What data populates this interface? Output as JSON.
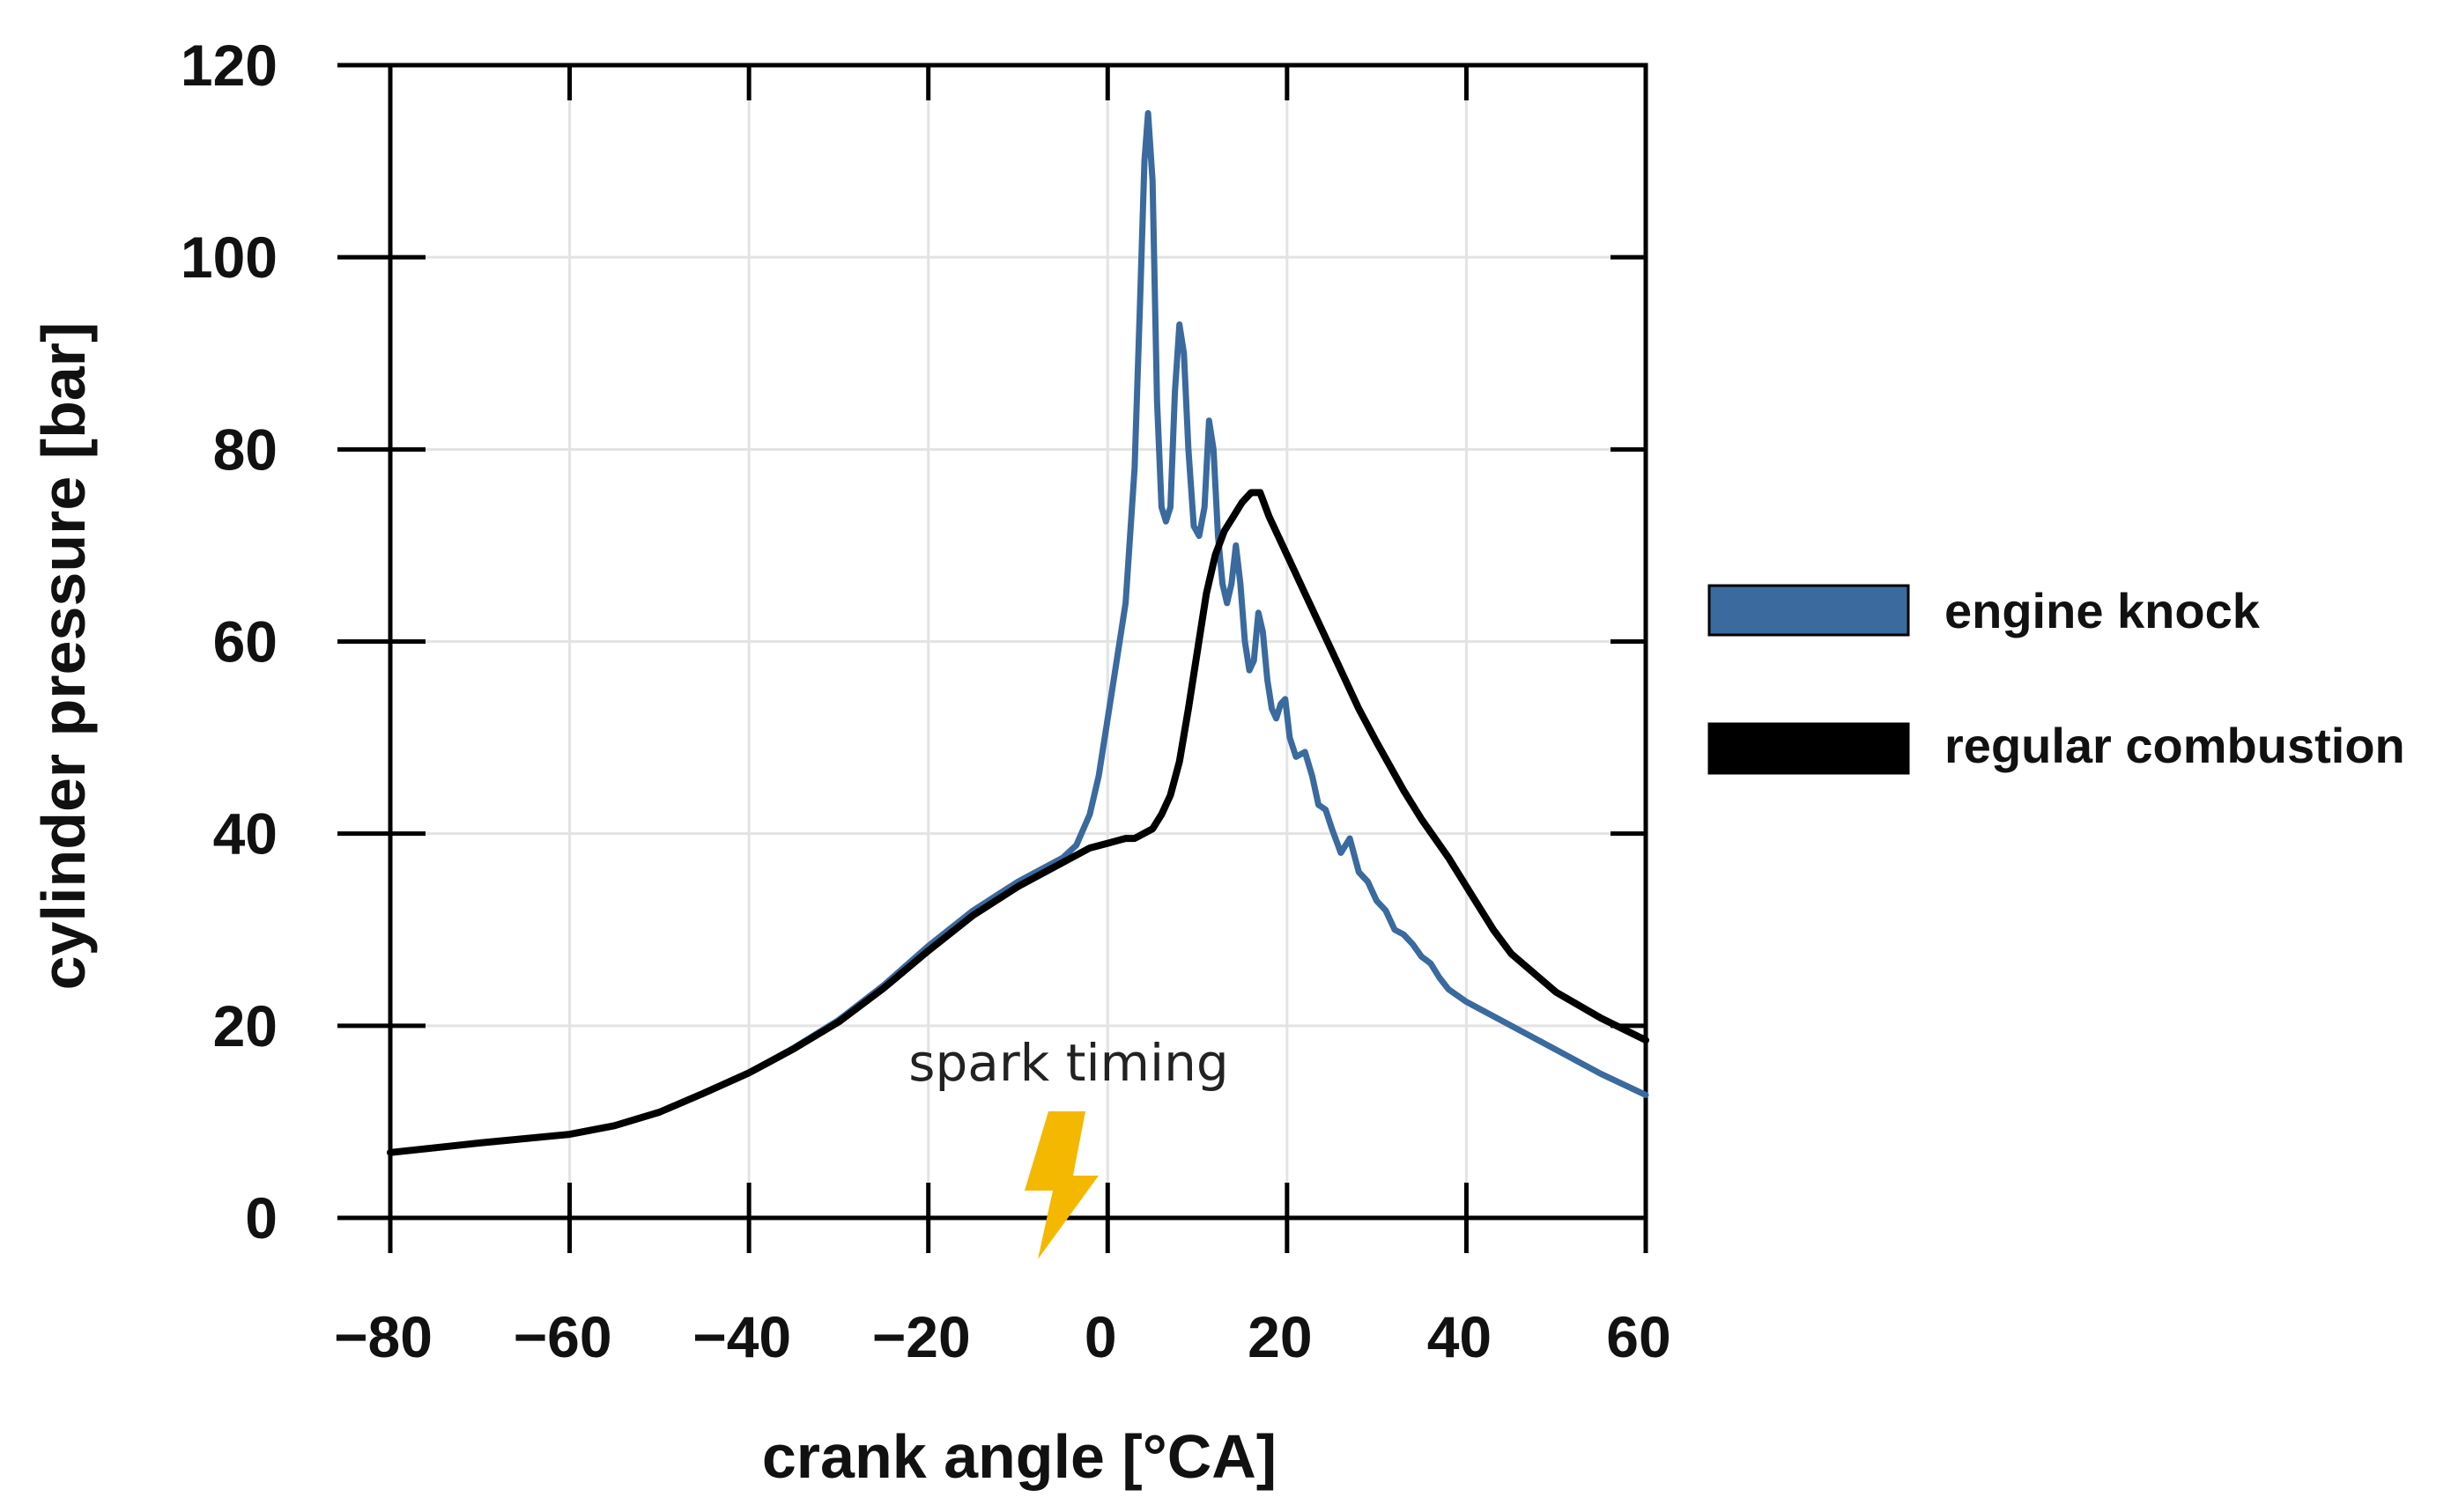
{
  "chart_data": {
    "type": "line",
    "title": "",
    "xlabel": "crank angle [°CA]",
    "ylabel": "cylinder pressure [bar]",
    "xlim": [
      -80,
      60
    ],
    "ylim": [
      0,
      120
    ],
    "x_ticks": [
      -80,
      -60,
      -40,
      -20,
      0,
      20,
      40,
      60
    ],
    "x_tick_labels": [
      "−80",
      "−60",
      "−40",
      "−20",
      "0",
      "20",
      "40",
      "60"
    ],
    "y_ticks": [
      0,
      20,
      40,
      60,
      80,
      100,
      120
    ],
    "y_tick_labels": [
      "0",
      "20",
      "40",
      "60",
      "80",
      "100",
      "120"
    ],
    "grid": true,
    "legend_position": "right",
    "series": [
      {
        "name": "engine knock",
        "color": "#3a6a9e",
        "points": [
          [
            -80,
            6.8
          ],
          [
            -70,
            7.8
          ],
          [
            -60,
            8.7
          ],
          [
            -55,
            9.6
          ],
          [
            -50,
            11
          ],
          [
            -45,
            13
          ],
          [
            -40,
            15.1
          ],
          [
            -35,
            17.7
          ],
          [
            -30,
            20.6
          ],
          [
            -25,
            24.2
          ],
          [
            -20,
            28.3
          ],
          [
            -15,
            32
          ],
          [
            -10,
            35
          ],
          [
            -5,
            37.5
          ],
          [
            -3.5,
            38.8
          ],
          [
            -2,
            42
          ],
          [
            -1,
            46
          ],
          [
            0,
            52
          ],
          [
            1,
            58
          ],
          [
            2,
            64
          ],
          [
            3,
            78
          ],
          [
            3.6,
            95
          ],
          [
            4.1,
            110
          ],
          [
            4.5,
            115
          ],
          [
            5,
            108
          ],
          [
            5.5,
            85
          ],
          [
            6,
            74
          ],
          [
            6.5,
            72.5
          ],
          [
            7,
            74
          ],
          [
            7.5,
            86
          ],
          [
            8,
            93
          ],
          [
            8.5,
            90
          ],
          [
            9,
            80
          ],
          [
            9.6,
            72
          ],
          [
            10.2,
            71
          ],
          [
            10.8,
            74
          ],
          [
            11.3,
            83
          ],
          [
            11.8,
            80
          ],
          [
            12.3,
            71
          ],
          [
            12.8,
            66
          ],
          [
            13.3,
            64
          ],
          [
            13.8,
            66
          ],
          [
            14.3,
            70
          ],
          [
            14.8,
            66
          ],
          [
            15.3,
            60
          ],
          [
            15.8,
            57
          ],
          [
            16.3,
            58
          ],
          [
            16.8,
            63
          ],
          [
            17.3,
            61
          ],
          [
            17.8,
            56
          ],
          [
            18.3,
            53
          ],
          [
            18.8,
            52
          ],
          [
            19.3,
            53.5
          ],
          [
            19.8,
            54
          ],
          [
            20.3,
            50
          ],
          [
            21,
            48
          ],
          [
            22,
            48.5
          ],
          [
            22.8,
            46
          ],
          [
            23.5,
            43
          ],
          [
            24.3,
            42.5
          ],
          [
            25,
            40.5
          ],
          [
            26,
            38
          ],
          [
            27,
            39.5
          ],
          [
            28,
            36
          ],
          [
            29,
            35
          ],
          [
            30,
            33
          ],
          [
            31,
            32
          ],
          [
            32,
            30
          ],
          [
            33,
            29.5
          ],
          [
            34,
            28.5
          ],
          [
            35,
            27.2
          ],
          [
            36,
            26.5
          ],
          [
            37,
            25
          ],
          [
            38,
            23.8
          ],
          [
            40,
            22.5
          ],
          [
            45,
            20
          ],
          [
            50,
            17.5
          ],
          [
            55,
            15
          ],
          [
            60,
            12.8
          ]
        ]
      },
      {
        "name": "regular combustion",
        "color": "#000000",
        "points": [
          [
            -80,
            6.8
          ],
          [
            -70,
            7.8
          ],
          [
            -60,
            8.7
          ],
          [
            -55,
            9.6
          ],
          [
            -50,
            11
          ],
          [
            -45,
            13
          ],
          [
            -40,
            15.1
          ],
          [
            -35,
            17.6
          ],
          [
            -30,
            20.4
          ],
          [
            -25,
            23.9
          ],
          [
            -20,
            27.8
          ],
          [
            -15,
            31.5
          ],
          [
            -10,
            34.5
          ],
          [
            -5,
            37
          ],
          [
            -2,
            38.5
          ],
          [
            0,
            39
          ],
          [
            2,
            39.5
          ],
          [
            3,
            39.5
          ],
          [
            5,
            40.5
          ],
          [
            6,
            42
          ],
          [
            7,
            44
          ],
          [
            8,
            47.5
          ],
          [
            9,
            53
          ],
          [
            10,
            59
          ],
          [
            11,
            65
          ],
          [
            12,
            69
          ],
          [
            13,
            71.5
          ],
          [
            14,
            73
          ],
          [
            15,
            74.5
          ],
          [
            16,
            75.5
          ],
          [
            17,
            75.5
          ],
          [
            18,
            73
          ],
          [
            20,
            69
          ],
          [
            22,
            65
          ],
          [
            25,
            59
          ],
          [
            28,
            53
          ],
          [
            30,
            49.5
          ],
          [
            33,
            44.5
          ],
          [
            35,
            41.5
          ],
          [
            38,
            37.5
          ],
          [
            40,
            34.5
          ],
          [
            43,
            30
          ],
          [
            45,
            27.5
          ],
          [
            50,
            23.5
          ],
          [
            55,
            20.8
          ],
          [
            60,
            18.5
          ]
        ]
      }
    ],
    "annotations": [
      {
        "text": "spark timing",
        "x": -3,
        "y": 15,
        "icon": "lightning-bolt-icon"
      }
    ],
    "spark_icon_color": "#f5b800"
  }
}
